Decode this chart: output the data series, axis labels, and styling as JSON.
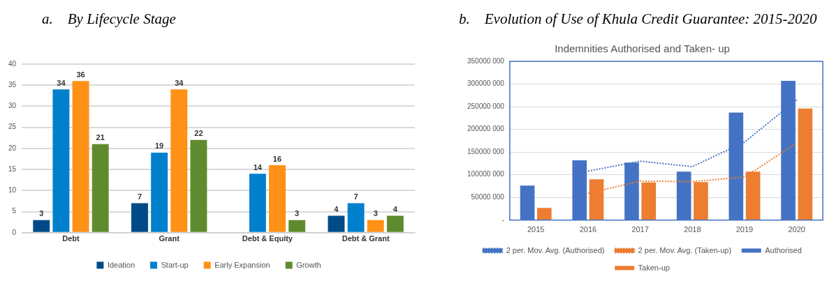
{
  "chart_data": [
    {
      "type": "bar",
      "title": "a.    By Lifecycle Stage",
      "categories": [
        "Debt",
        "Grant",
        "Debt & Equity",
        "Debt & Grant"
      ],
      "series": [
        {
          "name": "Ideation",
          "color": "#004b87",
          "values": [
            3,
            7,
            null,
            4
          ],
          "value_labels": [
            "3",
            "7",
            null,
            "4"
          ]
        },
        {
          "name": "Start-up",
          "color": "#0080cc",
          "values": [
            34,
            19,
            14,
            7
          ],
          "value_labels": [
            "34",
            "19",
            "14",
            "7"
          ]
        },
        {
          "name": "Early Expansion",
          "color": "#ff9116",
          "values": [
            36,
            34,
            16,
            3
          ],
          "value_labels": [
            "36",
            "34",
            "16",
            "3"
          ]
        },
        {
          "name": "Growth",
          "color": "#5f8b2e",
          "values": [
            21,
            22,
            3,
            4
          ],
          "value_labels": [
            "21",
            "22",
            "3",
            "4"
          ]
        }
      ],
      "ylim": [
        0,
        40
      ],
      "yticks": [
        0,
        5,
        10,
        15,
        20,
        25,
        30,
        35,
        40
      ],
      "grid": "y",
      "legend": "bottom"
    },
    {
      "type": "bar",
      "title": "b.    Evolution of Use of Khula Credit Guarantee: 2015-2020",
      "subtitle": "Indemnities Authorised and Taken- up",
      "categories": [
        "2015",
        "2016",
        "2017",
        "2018",
        "2019",
        "2020"
      ],
      "series": [
        {
          "name": "Authorised",
          "color": "#4472c4",
          "values": [
            76000000,
            132000000,
            127000000,
            107000000,
            237000000,
            307000000
          ]
        },
        {
          "name": "Taken-up",
          "color": "#ed7d31",
          "values": [
            27000000,
            90000000,
            83000000,
            84000000,
            107000000,
            246000000
          ]
        },
        {
          "name": "2 per. Mov. Avg. (Authorised)",
          "type": "line",
          "line_style": "dotted",
          "marker": "none",
          "color": "#4472c4",
          "values": [
            null,
            108000000,
            130000000,
            118000000,
            172000000,
            265000000
          ]
        },
        {
          "name": "2 per. Mov. Avg. (Taken-up)",
          "type": "line",
          "line_style": "dotted",
          "marker": "none",
          "color": "#ed7d31",
          "values": [
            null,
            59000000,
            86000000,
            85000000,
            95000000,
            170000000
          ]
        }
      ],
      "ylim": [
        0,
        350000000
      ],
      "yticks": [
        {
          "value": 0,
          "label": "-"
        },
        {
          "value": 50000000,
          "label": "50000 000"
        },
        {
          "value": 100000000,
          "label": "100000 000"
        },
        {
          "value": 150000000,
          "label": "150000 000"
        },
        {
          "value": 200000000,
          "label": "200000 000"
        },
        {
          "value": 250000000,
          "label": "250000 000"
        },
        {
          "value": 300000000,
          "label": "300000 000"
        },
        {
          "value": 350000000,
          "label": "350000 000"
        }
      ],
      "grid": "y",
      "legend": "bottom"
    }
  ]
}
